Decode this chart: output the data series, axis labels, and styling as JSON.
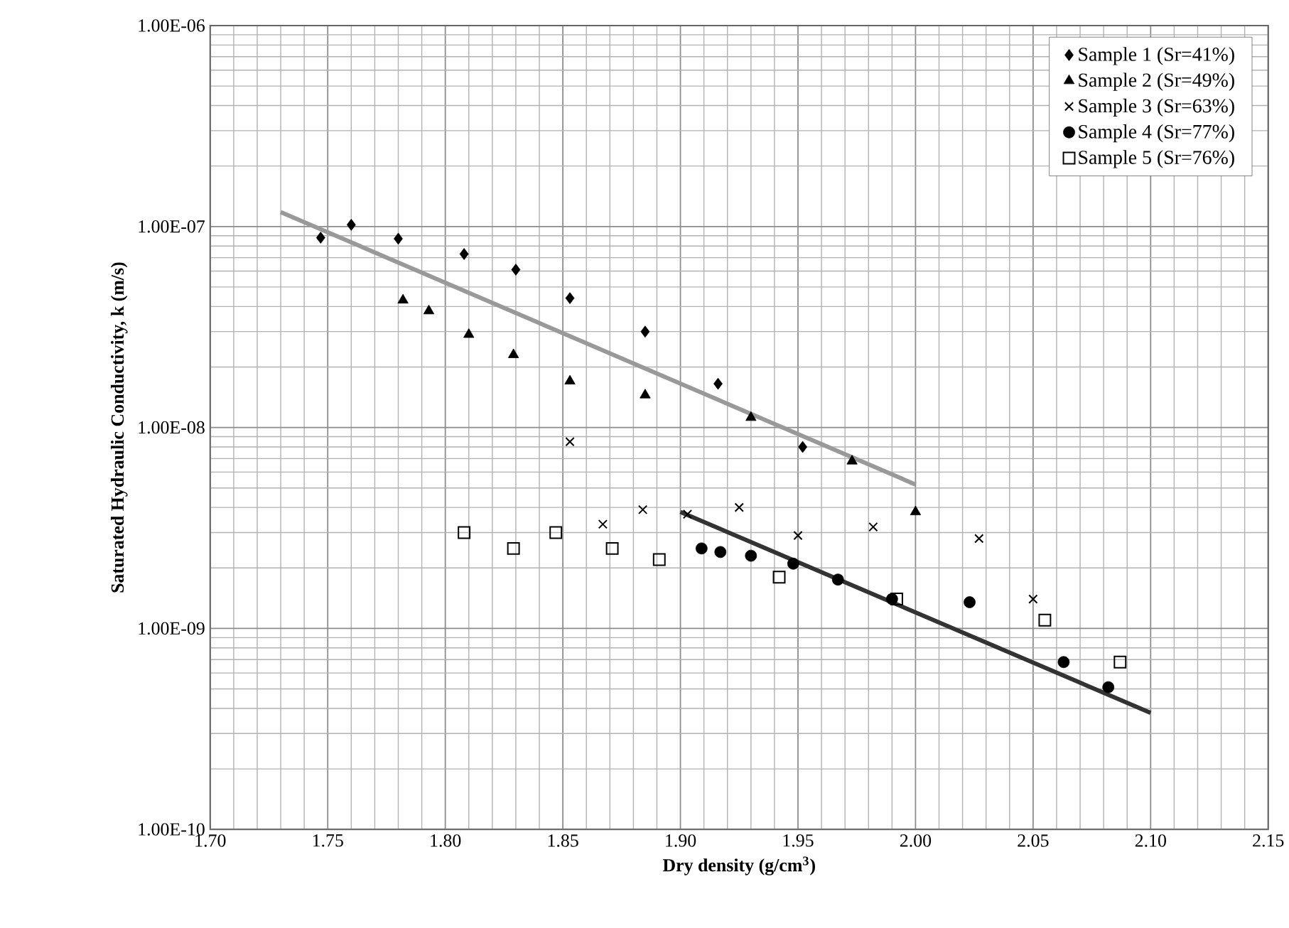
{
  "chart_data": {
    "type": "scatter",
    "xlabel": "Dry density (g/cm$^{3}$)",
    "ylabel": "Saturated Hydraulic Conductivity, k (m/s)",
    "log": "y",
    "grid": true,
    "legend": "top right",
    "xlim": [
      1.7,
      2.15
    ],
    "xticks": [
      {
        "value": 1.7,
        "label": "1.70"
      },
      {
        "value": 1.75,
        "label": "1.75"
      },
      {
        "value": 1.8,
        "label": "1.80"
      },
      {
        "value": 1.85,
        "label": "1.85"
      },
      {
        "value": 1.9,
        "label": "1.90"
      },
      {
        "value": 1.95,
        "label": "1.95"
      },
      {
        "value": 2.0,
        "label": "2.00"
      },
      {
        "value": 2.05,
        "label": "2.05"
      },
      {
        "value": 2.1,
        "label": "2.10"
      },
      {
        "value": 2.15,
        "label": "2.15"
      }
    ],
    "ylim": [
      1e-10,
      1e-06
    ],
    "yticks": [
      {
        "value": 1e-10,
        "label": "1.00E-10"
      },
      {
        "value": 1e-09,
        "label": "1.00E-09"
      },
      {
        "value": 1e-08,
        "label": "1.00E-08"
      },
      {
        "value": 1e-07,
        "label": "1.00E-07"
      },
      {
        "value": 1e-06,
        "label": "1.00E-06"
      }
    ],
    "series": [
      {
        "name": "Sample 1 (Sr=41%)",
        "marker": "diamond",
        "color": "#000000",
        "x": [
          1.747,
          1.76,
          1.78,
          1.808,
          1.83,
          1.853,
          1.885,
          1.916,
          1.952
        ],
        "values": [
          8.8e-08,
          1.02e-07,
          8.7e-08,
          7.3e-08,
          6.1e-08,
          4.4e-08,
          3e-08,
          1.65e-08,
          8e-09
        ]
      },
      {
        "name": "Sample 2 (Sr=49%)",
        "marker": "triangle",
        "color": "#000000",
        "x": [
          1.782,
          1.793,
          1.81,
          1.829,
          1.853,
          1.885,
          1.93,
          1.973,
          2.0
        ],
        "values": [
          4.3e-08,
          3.8e-08,
          2.9e-08,
          2.3e-08,
          1.7e-08,
          1.45e-08,
          1.12e-08,
          6.8e-09,
          3.8e-09
        ]
      },
      {
        "name": "Sample 3 (Sr=63%)",
        "marker": "cross",
        "color": "#000000",
        "x": [
          1.853,
          1.867,
          1.884,
          1.903,
          1.925,
          1.95,
          1.982,
          2.027,
          2.05
        ],
        "values": [
          8.5e-09,
          3.3e-09,
          3.9e-09,
          3.7e-09,
          4e-09,
          2.9e-09,
          3.2e-09,
          2.8e-09,
          1.4e-09
        ]
      },
      {
        "name": "Sample 4 (Sr=77%)",
        "marker": "circle",
        "color": "#000000",
        "x": [
          1.909,
          1.917,
          1.93,
          1.948,
          1.967,
          1.99,
          2.023,
          2.063,
          2.082
        ],
        "values": [
          2.5e-09,
          2.4e-09,
          2.3e-09,
          2.1e-09,
          1.75e-09,
          1.4e-09,
          1.35e-09,
          6.8e-10,
          5.1e-10
        ]
      },
      {
        "name": "Sample 5 (Sr=76%)",
        "marker": "square",
        "color": "#000000",
        "x": [
          1.808,
          1.829,
          1.847,
          1.871,
          1.891,
          1.942,
          1.992,
          2.055,
          2.087
        ],
        "values": [
          3e-09,
          2.5e-09,
          3e-09,
          2.5e-09,
          2.2e-09,
          1.8e-09,
          1.4e-09,
          1.1e-09,
          6.8e-10
        ]
      },
      {
        "type": "line",
        "marker": "none",
        "color": "#999999",
        "x": [
          1.73,
          2.0
        ],
        "values": [
          1.18e-07,
          5.2e-09
        ]
      },
      {
        "type": "line",
        "marker": "none",
        "color": "#333333",
        "x": [
          1.9,
          2.1
        ],
        "values": [
          3.8e-09,
          3.8e-10
        ]
      }
    ]
  }
}
